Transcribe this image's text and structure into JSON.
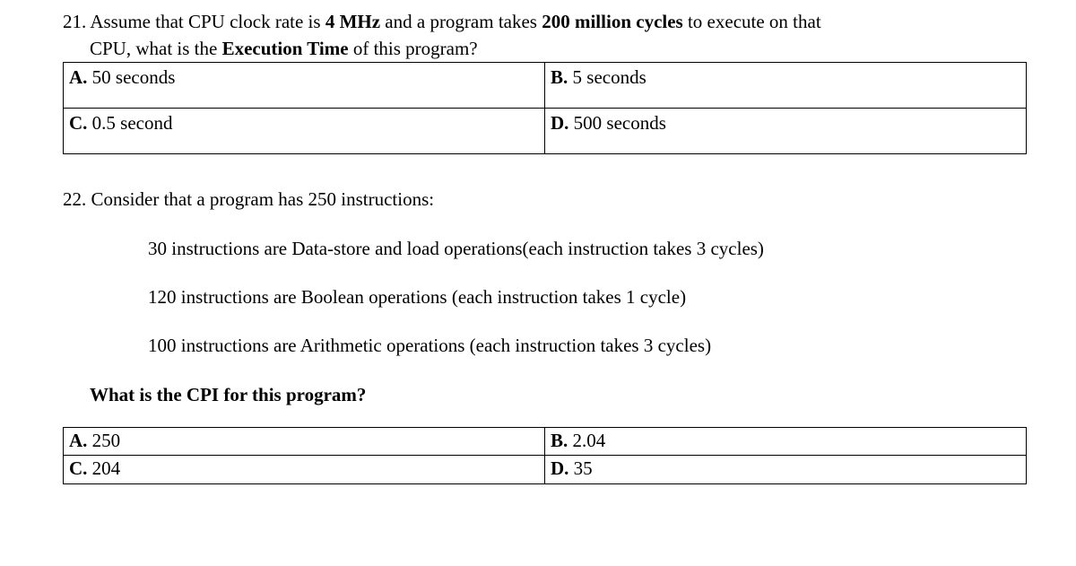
{
  "q21": {
    "number": "21.",
    "line1_pre": " Assume that CPU clock rate is ",
    "clock": "4 MHz",
    "line1_mid": " and a program takes ",
    "cycles": "200 million cycles",
    "line1_post": " to execute on that",
    "line2_pre": "CPU, what is the ",
    "exec": "Execution Time",
    "line2_post": " of this program?",
    "optA_label": "A.",
    "optA": " 50 seconds",
    "optB_label": "B.",
    "optB": " 5 seconds",
    "optC_label": "C.",
    "optC": " 0.5 second",
    "optD_label": "D.",
    "optD": " 500 seconds"
  },
  "q22": {
    "number": "22.",
    "intro": " Consider that a program has 250 instructions:",
    "line_a": "30 instructions are Data-store and load operations(each instruction takes 3 cycles)",
    "line_b": "120 instructions are Boolean operations (each instruction takes 1 cycle)",
    "line_c": "100 instructions are Arithmetic operations (each instruction  takes 3 cycles)",
    "cpi": "What is the CPI for this program?",
    "optA_label": "A.",
    "optA": " 250",
    "optB_label": "B.",
    "optB": " 2.04",
    "optC_label": "C.",
    "optC": " 204",
    "optD_label": "D.",
    "optD": " 35"
  }
}
